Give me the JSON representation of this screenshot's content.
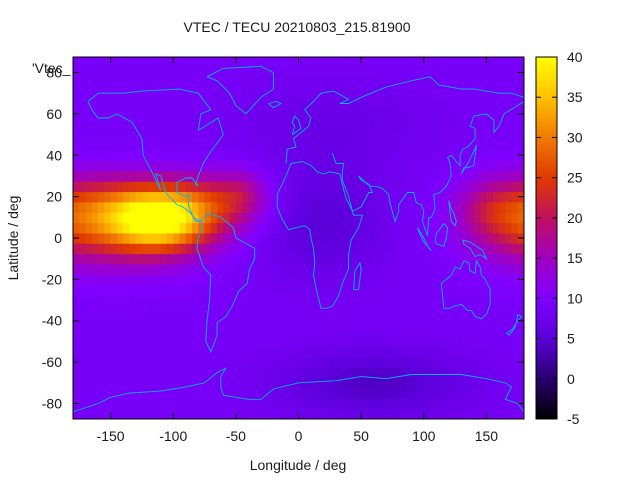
{
  "chart_data": {
    "type": "heatmap",
    "title": "VTEC / TECU 20210803_215.81900",
    "xlabel": "Longitude / deg",
    "ylabel": "Latitude / deg",
    "key_label": "'Vtec_",
    "xlim": [
      -180,
      180
    ],
    "ylim": [
      -87.5,
      87.5
    ],
    "xticks": [
      -150,
      -100,
      -50,
      0,
      50,
      100,
      150
    ],
    "yticks": [
      -80,
      -60,
      -40,
      -20,
      0,
      20,
      40,
      60,
      80
    ],
    "colorbar": {
      "min": -5,
      "max": 40,
      "ticks": [
        -5,
        0,
        5,
        10,
        15,
        20,
        25,
        30,
        35,
        40
      ]
    },
    "grid": false,
    "colormap": [
      "#000000",
      "#2a0070",
      "#5b00d9",
      "#8000ff",
      "#a000c0",
      "#c01060",
      "#e03a00",
      "#f07a00",
      "#ffc000",
      "#ffff00"
    ],
    "coastline_color": "#00b4ff",
    "grid_step": 5,
    "anomalies": [
      {
        "lon": -110,
        "lat": 8,
        "sigma_lon": 30,
        "sigma_lat": 10,
        "amp": 27
      },
      {
        "lon": -115,
        "lat": 20,
        "sigma_lon": 45,
        "sigma_lat": 8,
        "amp": 8
      },
      {
        "lon": -140,
        "lat": 5,
        "sigma_lon": 40,
        "sigma_lat": 14,
        "amp": 8
      },
      {
        "lon": -60,
        "lat": 18,
        "sigma_lon": 25,
        "sigma_lat": 10,
        "amp": 6
      },
      {
        "lon": -45,
        "lat": 22,
        "sigma_lon": 12,
        "sigma_lat": 8,
        "amp": 4
      },
      {
        "lon": 175,
        "lat": 10,
        "sigma_lon": 30,
        "sigma_lat": 13,
        "amp": 12
      },
      {
        "lon": 150,
        "lat": 15,
        "sigma_lon": 15,
        "sigma_lat": 8,
        "amp": 3
      },
      {
        "lon": 20,
        "lat": 8,
        "sigma_lon": 35,
        "sigma_lat": 20,
        "amp": -4
      },
      {
        "lon": 60,
        "lat": -70,
        "sigma_lon": 55,
        "sigma_lat": 12,
        "amp": -5
      },
      {
        "lon": 30,
        "lat": 55,
        "sigma_lon": 60,
        "sigma_lat": 15,
        "amp": -2
      }
    ],
    "background": 9
  }
}
